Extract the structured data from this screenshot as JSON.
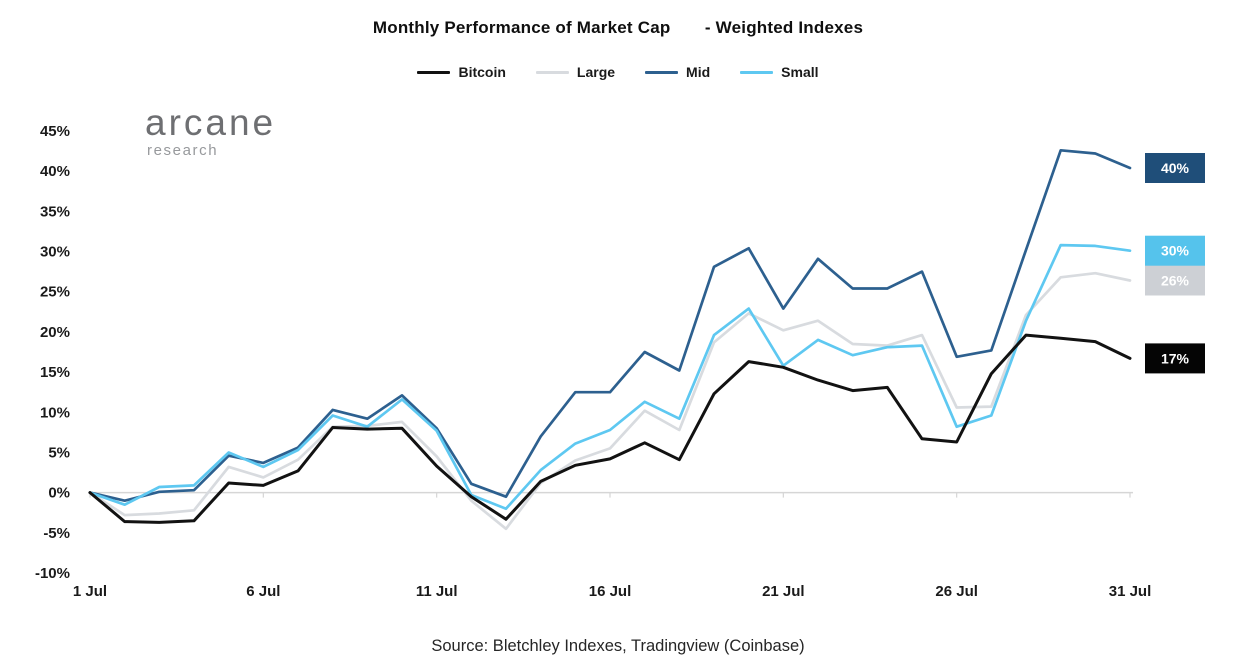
{
  "logo": {
    "name": "arcane",
    "subtitle": "research"
  },
  "footer": {
    "source": "Source: Bletchley Indexes, Tradingview (Coinbase)"
  },
  "chart_data": {
    "type": "line",
    "title": "Monthly Performance of Market Cap       - Weighted Indexes",
    "x_unit": "day of July (one data point per day, days 1-31)",
    "xlim": [
      1,
      31
    ],
    "ylim": [
      -10,
      45
    ],
    "grid": "horizontal zero-line only",
    "legend_position": "top",
    "axis_color": "#d6d6d6",
    "x_ticks": [
      {
        "day": 1,
        "label": "1 Jul"
      },
      {
        "day": 6,
        "label": "6 Jul"
      },
      {
        "day": 11,
        "label": "11 Jul"
      },
      {
        "day": 16,
        "label": "16 Jul"
      },
      {
        "day": 21,
        "label": "21 Jul"
      },
      {
        "day": 26,
        "label": "26 Jul"
      },
      {
        "day": 31,
        "label": "31 Jul"
      }
    ],
    "y_ticks": [
      {
        "value": 45,
        "label": "45%"
      },
      {
        "value": 40,
        "label": "40%"
      },
      {
        "value": 35,
        "label": "35%"
      },
      {
        "value": 30,
        "label": "30%"
      },
      {
        "value": 25,
        "label": "25%"
      },
      {
        "value": 20,
        "label": "20%"
      },
      {
        "value": 15,
        "label": "15%"
      },
      {
        "value": 10,
        "label": "10%"
      },
      {
        "value": 5,
        "label": "5%"
      },
      {
        "value": 0,
        "label": "0%"
      },
      {
        "value": -5,
        "label": "-5%"
      },
      {
        "value": -10,
        "label": "-10%"
      }
    ],
    "series": [
      {
        "name": "Bitcoin",
        "color": "#121212",
        "end_label": {
          "text": "17%",
          "bg": "#050505",
          "fg": "#ffffff"
        },
        "values": [
          0,
          -3.6,
          -3.7,
          -3.5,
          1.2,
          0.9,
          2.7,
          8.1,
          7.9,
          8.0,
          3.3,
          -0.5,
          -3.3,
          1.4,
          3.4,
          4.2,
          6.2,
          4.1,
          12.3,
          16.3,
          15.6,
          14.0,
          12.7,
          13.1,
          6.7,
          6.3,
          14.8,
          19.6,
          19.2,
          18.8,
          16.7
        ]
      },
      {
        "name": "Large",
        "color": "#d8dbdf",
        "end_label": {
          "text": "26%",
          "bg": "#cdd0d5",
          "fg": "#ffffff"
        },
        "values": [
          0,
          -2.8,
          -2.6,
          -2.2,
          3.2,
          1.9,
          4.1,
          8.2,
          8.3,
          8.8,
          4.5,
          -1.0,
          -4.5,
          1.2,
          4.0,
          5.5,
          10.2,
          7.8,
          18.7,
          22.3,
          20.2,
          21.4,
          18.5,
          18.3,
          19.6,
          10.6,
          10.7,
          22.1,
          26.8,
          27.3,
          26.4
        ]
      },
      {
        "name": "Mid",
        "color": "#2d608f",
        "end_label": {
          "text": "40%",
          "bg": "#1f4e79",
          "fg": "#ffffff"
        },
        "values": [
          0,
          -1.0,
          0.1,
          0.3,
          4.6,
          3.7,
          5.6,
          10.3,
          9.2,
          12.1,
          8.0,
          1.1,
          -0.5,
          7.0,
          12.5,
          12.5,
          17.5,
          15.2,
          28.1,
          30.4,
          22.9,
          29.1,
          25.4,
          25.4,
          27.5,
          16.9,
          17.7,
          30.2,
          42.6,
          42.2,
          40.4
        ]
      },
      {
        "name": "Small",
        "color": "#5ec8f1",
        "end_label": {
          "text": "30%",
          "bg": "#55c3ec",
          "fg": "#ffffff"
        },
        "values": [
          0,
          -1.5,
          0.7,
          0.9,
          5.0,
          3.2,
          5.3,
          9.6,
          8.2,
          11.6,
          7.7,
          -0.3,
          -2.0,
          2.8,
          6.1,
          7.8,
          11.3,
          9.2,
          19.6,
          22.9,
          15.8,
          19.0,
          17.1,
          18.1,
          18.3,
          8.2,
          9.6,
          21.4,
          30.8,
          30.7,
          30.1
        ]
      }
    ]
  }
}
